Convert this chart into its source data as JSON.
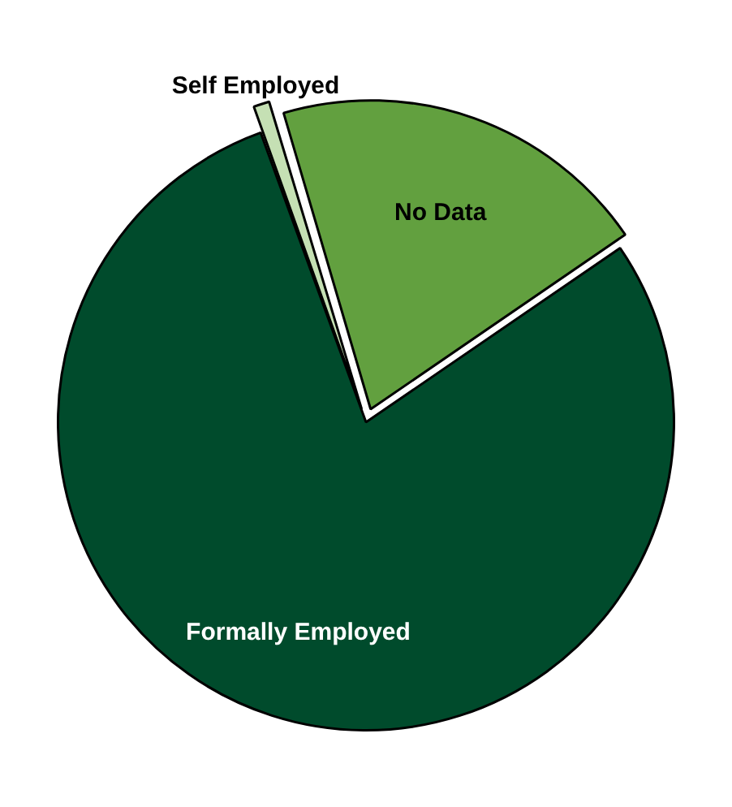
{
  "chart_data": {
    "type": "pie",
    "categories": [
      "Self Employed",
      "No Data",
      "Formally Employed"
    ],
    "values": [
      1,
      20,
      79
    ],
    "colors": [
      "#c5e0b4",
      "#62a03f",
      "#004b2c"
    ],
    "legend": false
  }
}
